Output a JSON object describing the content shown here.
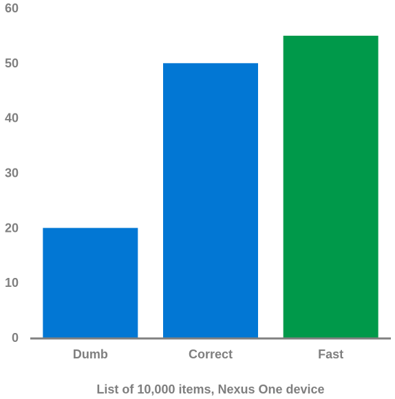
{
  "chart_data": {
    "type": "bar",
    "categories": [
      "Dumb",
      "Correct",
      "Fast"
    ],
    "values": [
      20,
      50,
      55
    ],
    "bar_colors": [
      "#0277d4",
      "#0277d4",
      "#00994a"
    ],
    "xlabel": "List of 10,000 items, Nexus One device",
    "ylabel": "",
    "ylim": [
      0,
      60
    ],
    "yticks": [
      0,
      10,
      20,
      30,
      40,
      50,
      60
    ],
    "grid": false,
    "axis_color": "#808080",
    "label_color": "#7f7f7f"
  }
}
